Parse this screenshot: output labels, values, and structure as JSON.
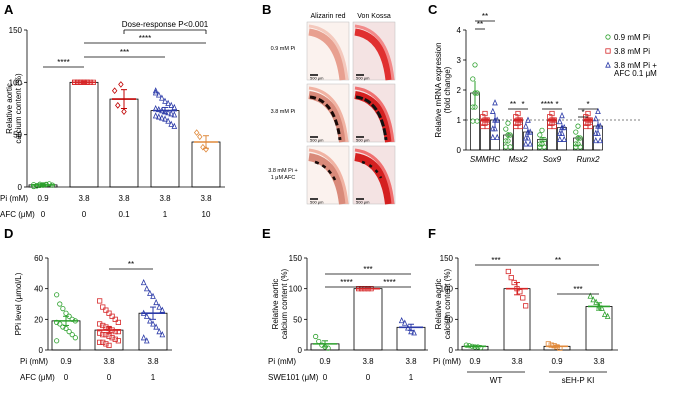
{
  "figure": {
    "panel_labels": [
      "A",
      "B",
      "C",
      "D",
      "E",
      "F"
    ]
  },
  "colors": {
    "green": "#2ca02c",
    "red": "#d62728",
    "darkred": "#c00000",
    "purple": "#7b68b5",
    "blue": "#2b3aa8",
    "orange": "#e08a3c",
    "black": "#000000",
    "grey": "#777777"
  },
  "micrograph": {
    "col_titles": [
      "Alizarin red",
      "Von Kossa"
    ],
    "row_labels": [
      "0.9 mM Pi",
      "3.8 mM Pi",
      "3.8 mM Pi +",
      "1 μM AFC"
    ],
    "scale_bar": "500 μm"
  },
  "chart_data": [
    {
      "panel": "A",
      "type": "bar",
      "ylabel": "Relative aortic calcium content (%)",
      "ylim": [
        0,
        150
      ],
      "yticks": [
        0,
        50,
        100,
        150
      ],
      "row_labels": [
        "Pi (mM)",
        "AFC (μM)"
      ],
      "rows": [
        [
          "0.9",
          "3.8",
          "3.8",
          "3.8",
          "3.8"
        ],
        [
          "0",
          "0",
          "0.1",
          "1",
          "10"
        ]
      ],
      "values": [
        2,
        100,
        84,
        73,
        43
      ],
      "errors": [
        1,
        1,
        9,
        3,
        6
      ],
      "bar_colors": [
        "#2ca02c",
        "#d62728",
        "#c00000",
        "#2b3aa8",
        "#e08a3c"
      ],
      "points": [
        [
          0.5,
          1,
          1.5,
          2,
          2.5,
          3,
          1.8,
          2.2,
          1.2,
          2.6,
          1.7,
          2.3
        ],
        [
          100,
          100,
          100,
          100,
          100,
          100,
          100,
          100,
          100,
          100,
          100,
          100
        ],
        [
          92,
          78,
          98,
          72
        ],
        [
          90,
          88,
          85,
          82,
          80,
          78,
          76,
          75,
          74,
          73,
          72,
          71,
          70,
          69,
          68,
          67,
          66,
          65,
          63,
          60,
          58,
          92
        ],
        [
          52,
          48,
          38,
          36
        ]
      ],
      "annotations": [
        "****",
        "***",
        "****",
        "Dose-response P<0.001"
      ]
    },
    {
      "panel": "C",
      "type": "bar",
      "ylabel": "Relative mRNA expression (fold change)",
      "ylim": [
        0,
        4
      ],
      "yticks": [
        0,
        1,
        2,
        3,
        4
      ],
      "categories": [
        "SMMHC",
        "Msx2",
        "Sox9",
        "Runx2"
      ],
      "series": [
        {
          "name": "0.9 mM Pi",
          "color": "#2ca02c",
          "values": [
            1.9,
            0.5,
            0.35,
            0.4
          ],
          "errors": [
            0.4,
            0.1,
            0.05,
            0.1
          ]
        },
        {
          "name": "3.8 mM Pi",
          "color": "#d62728",
          "values": [
            1,
            1,
            1,
            1
          ],
          "errors": [
            0,
            0,
            0,
            0
          ]
        },
        {
          "name": "3.8 mM Pi + AFC 0.1 μM",
          "color": "#2b3aa8",
          "values": [
            1.0,
            0.6,
            0.75,
            0.8
          ],
          "errors": [
            0.2,
            0.1,
            0.1,
            0.15
          ]
        }
      ],
      "annotations": [
        "**",
        "**",
        "**",
        "*",
        "****",
        "*",
        "*",
        "*"
      ]
    },
    {
      "panel": "D",
      "type": "bar",
      "ylabel": "PPi level (μmol/L)",
      "ylim": [
        0,
        60
      ],
      "yticks": [
        0,
        20,
        40,
        60
      ],
      "row_labels": [
        "Pi (mM)",
        "AFC (μM)"
      ],
      "rows": [
        [
          "0.9",
          "3.8",
          "3.8"
        ],
        [
          "0",
          "0",
          "1"
        ]
      ],
      "values": [
        19,
        13,
        24
      ],
      "errors": [
        3,
        2,
        4
      ],
      "bar_colors": [
        "#2ca02c",
        "#d62728",
        "#2b3aa8"
      ],
      "points": [
        [
          36,
          30,
          27,
          24,
          22,
          20,
          19,
          18,
          17,
          15,
          14,
          12,
          10,
          8,
          6
        ],
        [
          32,
          28,
          26,
          24,
          22,
          20,
          18,
          17,
          16,
          15,
          14,
          13,
          12,
          12,
          11,
          10,
          10,
          9,
          8,
          7,
          6,
          5,
          5,
          4,
          3
        ],
        [
          44,
          40,
          37,
          35,
          31,
          28,
          26,
          24,
          22,
          19,
          17,
          15,
          12,
          10,
          8,
          6
        ]
      ],
      "annotations": [
        "**"
      ]
    },
    {
      "panel": "E",
      "type": "bar",
      "ylabel": "Relative aortic calcium content (%)",
      "ylim": [
        0,
        150
      ],
      "yticks": [
        0,
        50,
        100,
        150
      ],
      "row_labels": [
        "Pi (mM)",
        "SWE101 (μM)"
      ],
      "rows": [
        [
          "0.9",
          "3.8",
          "3.8"
        ],
        [
          "0",
          "0",
          "1"
        ]
      ],
      "values": [
        10,
        100,
        37
      ],
      "errors": [
        5,
        0.5,
        5
      ],
      "bar_colors": [
        "#2ca02c",
        "#d62728",
        "#2b3aa8"
      ],
      "points": [
        [
          22,
          14,
          8,
          5,
          3
        ],
        [
          100,
          100,
          100,
          100,
          100
        ],
        [
          48,
          44,
          36,
          30,
          28
        ]
      ],
      "annotations": [
        "***",
        "****",
        "****"
      ]
    },
    {
      "panel": "F",
      "type": "bar",
      "ylabel": "Relative aortic calcium content (%)",
      "ylim": [
        0,
        150
      ],
      "yticks": [
        0,
        50,
        100,
        150
      ],
      "row_labels": [
        "Pi (mM)"
      ],
      "rows": [
        [
          "0.9",
          "3.8",
          "0.9",
          "3.8"
        ]
      ],
      "group_labels": [
        "WT",
        "sEH-P KI"
      ],
      "values": [
        6,
        100,
        6,
        71
      ],
      "errors": [
        1,
        10,
        1.5,
        6
      ],
      "bar_colors": [
        "#2ca02c",
        "#d62728",
        "#e08a3c",
        "#2ca02c"
      ],
      "points": [
        [
          8,
          7,
          6,
          5,
          5,
          4
        ],
        [
          128,
          118,
          110,
          100,
          95,
          85,
          72
        ],
        [
          10,
          8,
          7,
          5,
          3
        ],
        [
          88,
          82,
          78,
          72,
          68,
          58,
          55
        ]
      ],
      "annotations": [
        "***",
        "**",
        "***"
      ]
    }
  ]
}
